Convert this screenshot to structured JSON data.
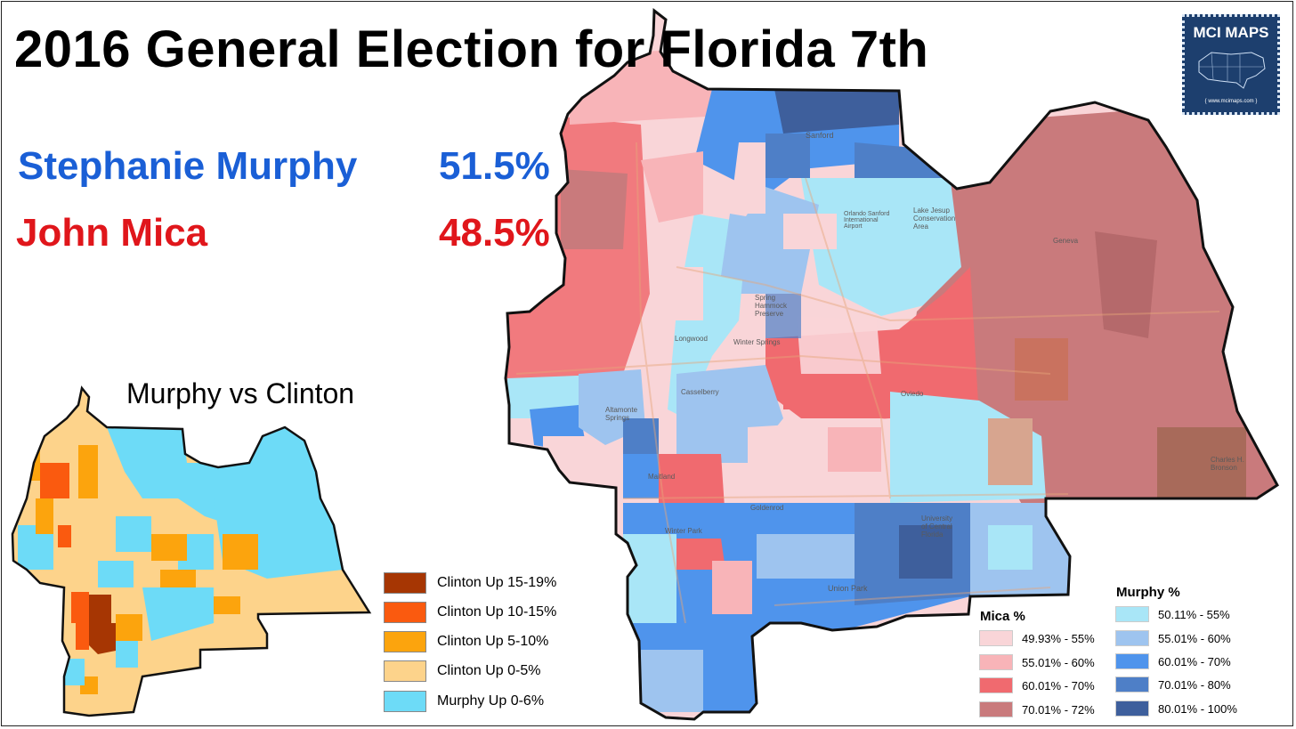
{
  "header": {
    "title": "2016 General Election for Florida 7th"
  },
  "results": [
    {
      "candidate": "Stephanie Murphy",
      "pct": "51.5%",
      "color": "#1a5fd6"
    },
    {
      "candidate": "John Mica",
      "pct": "48.5%",
      "color": "#e0161b"
    }
  ],
  "logo": {
    "title": "MCI MAPS",
    "url": "{ www.mcimaps.com }"
  },
  "main_map": {
    "place_labels": [
      "Sanford",
      "Longwood",
      "Winter Springs",
      "Casselberry",
      "Altamonte Springs",
      "Maitland",
      "Winter Park",
      "Goldenrod",
      "Union Park",
      "Oviedo",
      "Geneva",
      "University of Central Florida",
      "Lake Jesup Conservation Area",
      "Spring Hammock Preserve",
      "Orlando Sanford International Airport",
      "Charles H. Bronson"
    ],
    "mica_legend": {
      "heading": "Mica  %",
      "items": [
        {
          "label": "49.93% - 55%",
          "color": "#f9d5d8"
        },
        {
          "label": "55.01% - 60%",
          "color": "#f8b4b8"
        },
        {
          "label": "60.01% - 70%",
          "color": "#f06a6f"
        },
        {
          "label": "70.01% - 72%",
          "color": "#c97a7c"
        }
      ]
    },
    "murphy_legend": {
      "heading": "Murphy  %",
      "items": [
        {
          "label": "50.11% - 55%",
          "color": "#a9e6f7"
        },
        {
          "label": "55.01% - 60%",
          "color": "#9ec4ef"
        },
        {
          "label": "60.01% - 70%",
          "color": "#4f94ec"
        },
        {
          "label": "70.01% - 80%",
          "color": "#4e7fc7"
        },
        {
          "label": "80.01% - 100%",
          "color": "#3e5f9c"
        }
      ]
    }
  },
  "inset_map": {
    "title": "Murphy vs Clinton",
    "legend": [
      {
        "label": "Clinton Up 15-19%",
        "color": "#a63603"
      },
      {
        "label": "Clinton Up 10-15%",
        "color": "#fa5a0f"
      },
      {
        "label": "Clinton Up 5-10%",
        "color": "#fca40d"
      },
      {
        "label": "Clinton Up 0-5%",
        "color": "#fdd38b"
      },
      {
        "label": "Murphy Up 0-6%",
        "color": "#6ddbf7"
      }
    ]
  }
}
